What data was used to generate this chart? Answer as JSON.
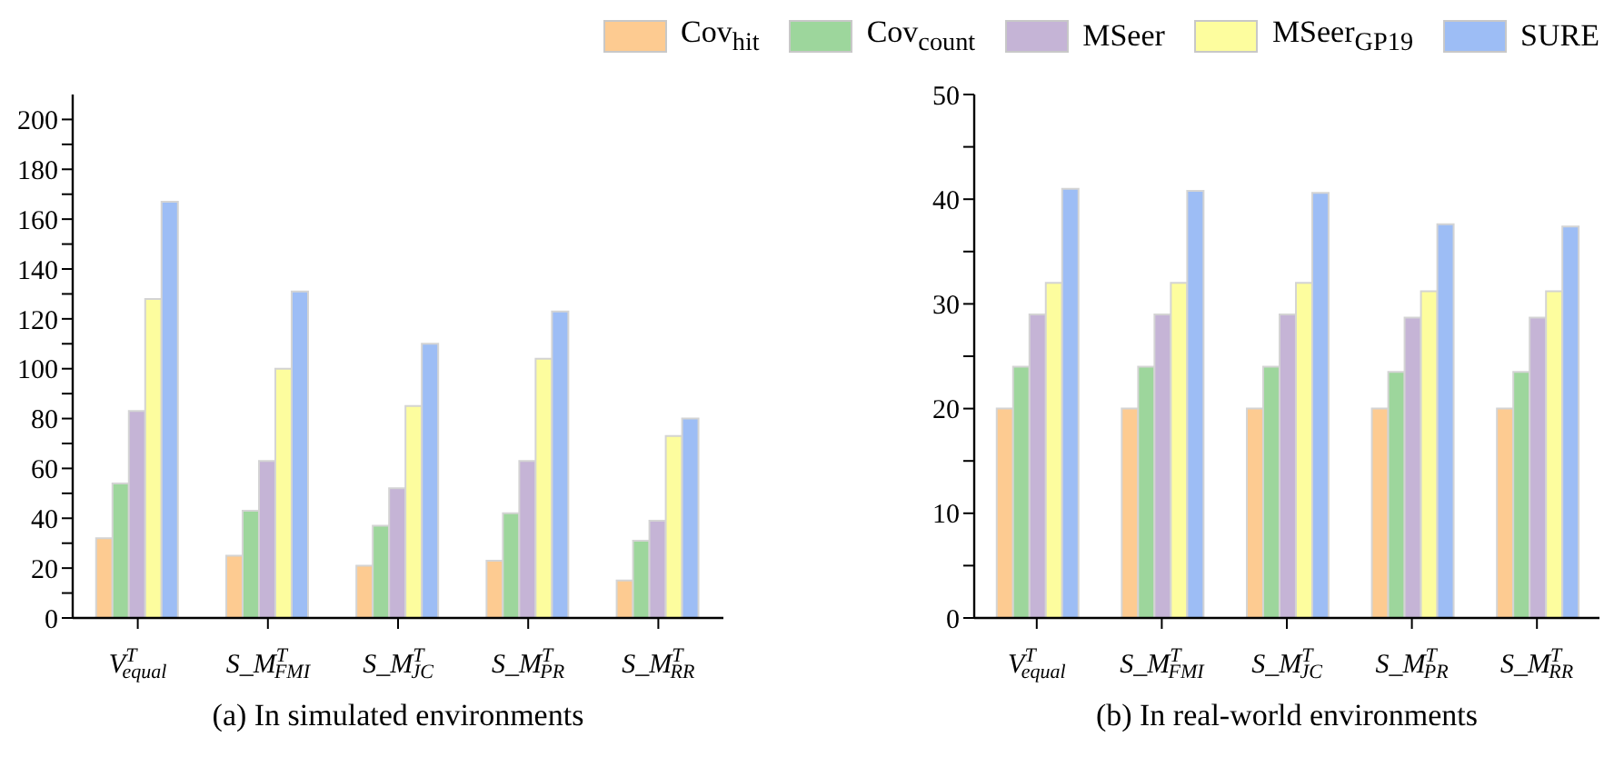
{
  "chart_data": [
    {
      "type": "bar",
      "title": "(a) In simulated environments",
      "categories": [
        "V$^{T}$$_{equal}$",
        "S_M$^{T}$$_{FMI}$",
        "S_M$^{T}$$_{JC}$",
        "S_M$^{T}$$_{PR}$",
        "S_M$^{T}$$_{RR}$"
      ],
      "series": [
        {
          "color": "#fdcb91",
          "values": [
            32,
            25,
            21,
            23,
            15
          ]
        },
        {
          "color": "#9dd69c",
          "values": [
            54,
            43,
            37,
            42,
            31
          ]
        },
        {
          "color": "#c5b4d6",
          "values": [
            83,
            63,
            52,
            63,
            39
          ]
        },
        {
          "color": "#fdfd9e",
          "values": [
            128,
            100,
            85,
            104,
            73
          ]
        },
        {
          "color": "#9dbdf5",
          "values": [
            167,
            131,
            110,
            123,
            80
          ]
        }
      ],
      "ylim": [
        0,
        210
      ],
      "yticks": [
        0,
        {
          "value": 10,
          "label": null
        },
        20,
        {
          "value": 30,
          "label": null
        },
        40,
        {
          "value": 50,
          "label": null
        },
        60,
        {
          "value": 70,
          "label": null
        },
        80,
        {
          "value": 90,
          "label": null
        },
        100,
        {
          "value": 110,
          "label": null
        },
        120,
        {
          "value": 130,
          "label": null
        },
        140,
        {
          "value": 150,
          "label": null
        },
        160,
        {
          "value": 170,
          "label": null
        },
        180,
        {
          "value": 190,
          "label": null
        },
        200
      ],
      "grid": false
    },
    {
      "type": "bar",
      "title": "(b) In real-world environments",
      "categories": [
        "V$^{T}$$_{equal}$",
        "S_M$^{T}$$_{FMI}$",
        "S_M$^{T}$$_{JC}$",
        "S_M$^{T}$$_{PR}$",
        "S_M$^{T}$$_{RR}$"
      ],
      "series": [
        {
          "name": "Cov$_{hit}$",
          "color": "#fdcb91",
          "values": [
            20,
            20,
            20,
            20,
            20
          ]
        },
        {
          "name": "Cov$_{count}$",
          "color": "#9dd69c",
          "values": [
            24,
            24,
            24,
            23.5,
            23.5
          ]
        },
        {
          "name": "MSeer",
          "color": "#c5b4d6",
          "values": [
            29,
            29,
            29,
            28.7,
            28.7
          ]
        },
        {
          "name": "MSeer$_{GP19}$",
          "color": "#fdfd9e",
          "values": [
            32,
            32,
            32,
            31.2,
            31.2
          ]
        },
        {
          "name": "SURE",
          "color": "#9dbdf5",
          "values": [
            41,
            40.8,
            40.6,
            37.6,
            37.4
          ]
        }
      ],
      "ylim": [
        0,
        50
      ],
      "yticks": [
        0,
        {
          "value": 5,
          "label": null
        },
        10,
        {
          "value": 15,
          "label": null
        },
        20,
        {
          "value": 25,
          "label": null
        },
        30,
        {
          "value": 35,
          "label": null
        },
        40,
        {
          "value": 45,
          "label": null
        },
        50
      ],
      "grid": false,
      "legend": "top"
    }
  ]
}
